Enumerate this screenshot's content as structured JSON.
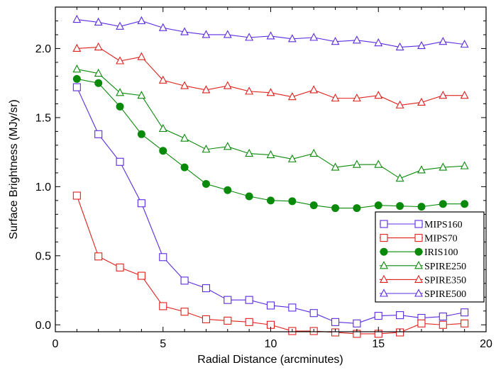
{
  "chart_data": {
    "type": "line",
    "title": "",
    "xlabel": "Radial Distance (arcminutes)",
    "ylabel": "Surface Brightness (MJy/sr)",
    "xlim": [
      0,
      20
    ],
    "ylim": [
      -0.05,
      2.3
    ],
    "xticks": [
      0,
      5,
      10,
      15,
      20
    ],
    "yticks": [
      0.0,
      0.5,
      1.0,
      1.5,
      2.0
    ],
    "xtick_labels": [
      "0",
      "5",
      "10",
      "15",
      "20"
    ],
    "ytick_labels": [
      "0.0",
      "0.5",
      "1.0",
      "1.5",
      "2.0"
    ],
    "grid": false,
    "legend_position": "lower-right",
    "x": [
      1,
      2,
      3,
      4,
      5,
      6,
      7,
      8,
      9,
      10,
      11,
      12,
      13,
      14,
      15,
      16,
      17,
      18,
      19
    ],
    "series": [
      {
        "name": "MIPS160",
        "color": "#5b2be0",
        "marker": "square-open",
        "values": [
          1.72,
          1.38,
          1.18,
          0.88,
          0.49,
          0.32,
          0.265,
          0.18,
          0.18,
          0.14,
          0.125,
          0.085,
          0.02,
          0.01,
          0.065,
          0.07,
          0.05,
          0.06,
          0.09
        ]
      },
      {
        "name": "MIPS70",
        "color": "#e0201c",
        "marker": "square-open",
        "values": [
          0.935,
          0.495,
          0.415,
          0.355,
          0.135,
          0.095,
          0.04,
          0.03,
          0.02,
          0.0,
          -0.045,
          -0.045,
          -0.055,
          -0.065,
          -0.065,
          -0.055,
          0.01,
          0.0,
          0.01
        ]
      },
      {
        "name": "IRIS100",
        "color": "#0a8a0a",
        "marker": "circle-filled",
        "values": [
          1.78,
          1.75,
          1.58,
          1.38,
          1.26,
          1.14,
          1.02,
          0.975,
          0.93,
          0.9,
          0.895,
          0.865,
          0.845,
          0.845,
          0.865,
          0.86,
          0.855,
          0.875,
          0.875
        ]
      },
      {
        "name": "SPIRE250",
        "color": "#0a8a0a",
        "marker": "triangle-open",
        "values": [
          1.85,
          1.82,
          1.68,
          1.66,
          1.42,
          1.35,
          1.27,
          1.29,
          1.24,
          1.23,
          1.2,
          1.24,
          1.14,
          1.16,
          1.16,
          1.06,
          1.12,
          1.14,
          1.15
        ]
      },
      {
        "name": "SPIRE350",
        "color": "#e0201c",
        "marker": "triangle-open",
        "values": [
          2.0,
          2.01,
          1.91,
          1.94,
          1.77,
          1.73,
          1.7,
          1.73,
          1.69,
          1.68,
          1.65,
          1.7,
          1.64,
          1.64,
          1.66,
          1.59,
          1.61,
          1.66,
          1.66
        ]
      },
      {
        "name": "SPIRE500",
        "color": "#5b2be0",
        "marker": "triangle-open",
        "values": [
          2.21,
          2.19,
          2.16,
          2.2,
          2.15,
          2.12,
          2.1,
          2.1,
          2.08,
          2.09,
          2.07,
          2.08,
          2.05,
          2.06,
          2.04,
          2.01,
          2.02,
          2.05,
          2.03
        ]
      }
    ]
  }
}
